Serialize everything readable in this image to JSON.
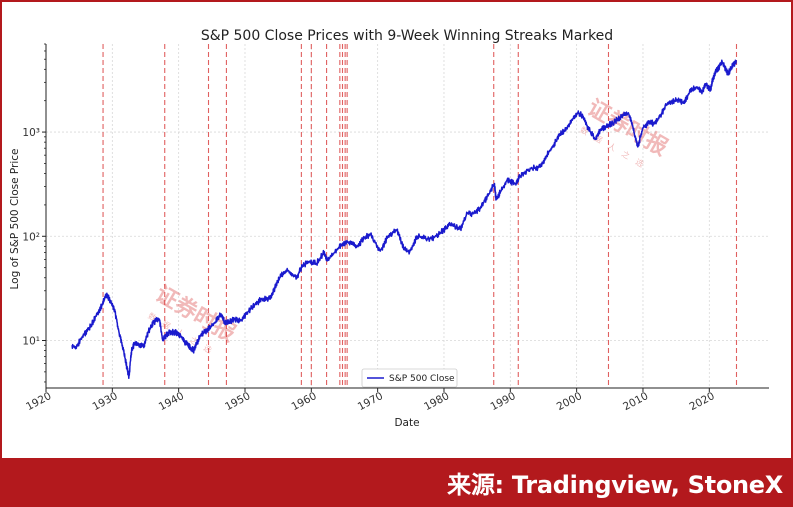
{
  "chart_data": {
    "type": "line",
    "title": "S&P 500 Close Prices with 9-Week Winning Streaks Marked",
    "xlabel": "Date",
    "ylabel": "Log of S&P 500 Close Price",
    "yscale": "log",
    "xlim": [
      1920,
      2029
    ],
    "ylim": [
      3.5,
      7000
    ],
    "x_ticks": [
      1920,
      1930,
      1940,
      1950,
      1960,
      1970,
      1980,
      1990,
      2000,
      2010,
      2020
    ],
    "y_ticks": [
      10,
      100,
      1000
    ],
    "y_tick_labels": [
      "10¹",
      "10²",
      "10³"
    ],
    "grid": true,
    "legend_position": "lower-center",
    "series": [
      {
        "name": "S&P 500 Close",
        "color": "#1a1acd",
        "x": [
          1923.9,
          1924.5,
          1925.5,
          1926.5,
          1927.5,
          1928.5,
          1929.1,
          1929.7,
          1930.4,
          1931.0,
          1931.6,
          1932.2,
          1932.5,
          1932.9,
          1933.4,
          1934.0,
          1934.8,
          1935.4,
          1936.2,
          1937.1,
          1937.6,
          1938.0,
          1938.6,
          1939.5,
          1940.3,
          1941.0,
          1941.8,
          1942.3,
          1943.2,
          1944.2,
          1945.5,
          1946.4,
          1946.9,
          1947.5,
          1948.5,
          1949.5,
          1950.5,
          1951.5,
          1952.5,
          1953.7,
          1954.5,
          1955.5,
          1956.5,
          1957.8,
          1958.5,
          1959.5,
          1960.8,
          1961.9,
          1962.4,
          1963.5,
          1964.5,
          1966.0,
          1966.8,
          1968.0,
          1968.9,
          1970.4,
          1971.5,
          1972.9,
          1974.0,
          1974.8,
          1976.0,
          1977.5,
          1978.5,
          1980.0,
          1980.9,
          1982.5,
          1983.5,
          1984.5,
          1985.5,
          1986.5,
          1987.6,
          1987.85,
          1988.5,
          1989.5,
          1990.8,
          1991.5,
          1993.0,
          1994.5,
          1995.5,
          1996.5,
          1997.5,
          1998.5,
          1999.5,
          2000.2,
          2000.8,
          2001.7,
          2002.8,
          2003.5,
          2004.5,
          2005.5,
          2006.5,
          2007.8,
          2008.5,
          2009.2,
          2010.0,
          2011.0,
          2011.7,
          2012.5,
          2013.5,
          2014.5,
          2015.5,
          2016.1,
          2017.0,
          2018.0,
          2018.95,
          2019.5,
          2020.2,
          2020.5,
          2021.0,
          2021.95,
          2022.8,
          2023.5,
          2024.1
        ],
        "y": [
          9,
          8.5,
          11,
          13,
          17,
          22,
          28,
          24,
          19,
          12,
          8.5,
          5.5,
          4.5,
          8,
          9.5,
          9,
          9,
          12,
          15,
          16,
          10,
          11,
          12,
          12,
          11,
          9.5,
          8.5,
          8,
          11,
          12.5,
          15,
          18,
          15,
          15,
          16,
          15.5,
          19,
          22,
          25,
          25,
          32,
          43,
          47,
          40,
          50,
          57,
          55,
          70,
          58,
          70,
          83,
          88,
          78,
          97,
          104,
          72,
          98,
          116,
          75,
          70,
          100,
          95,
          97,
          115,
          130,
          118,
          165,
          165,
          185,
          240,
          320,
          225,
          265,
          345,
          320,
          380,
          450,
          460,
          600,
          750,
          950,
          1100,
          1350,
          1520,
          1450,
          1100,
          850,
          1020,
          1150,
          1220,
          1380,
          1530,
          1100,
          720,
          1100,
          1250,
          1200,
          1400,
          1800,
          2000,
          2050,
          1900,
          2400,
          2700,
          2450,
          2900,
          2500,
          3200,
          3800,
          4700,
          3600,
          4300,
          4800
        ]
      }
    ],
    "markers": {
      "label": "9-week winning streaks",
      "color": "#e06060",
      "x": [
        1928.6,
        1937.9,
        1944.5,
        1947.2,
        1958.5,
        1960.0,
        1962.3,
        1964.3,
        1964.7,
        1965.1,
        1965.4,
        1987.5,
        1991.2,
        2004.8,
        2024.1
      ]
    }
  },
  "watermark": {
    "text": "证券时报",
    "sub": "数据人之选"
  },
  "footer": {
    "source": "来源: Tradingview, StoneX"
  }
}
